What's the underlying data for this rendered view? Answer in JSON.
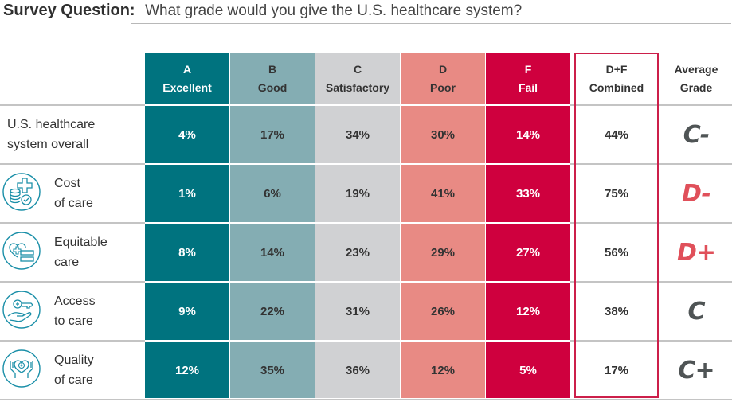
{
  "header": {
    "question_label": "Survey Question:",
    "question_text": "What grade would you give the U.S. healthcare system?"
  },
  "columns": [
    {
      "key": "A",
      "letter": "A",
      "label": "Excellent",
      "color": "#00737f",
      "text_color": "#ffffff"
    },
    {
      "key": "B",
      "letter": "B",
      "label": "Good",
      "color": "#84adb3",
      "text_color": "#333333"
    },
    {
      "key": "C",
      "letter": "C",
      "label": "Satisfactory",
      "color": "#d0d1d3",
      "text_color": "#333333"
    },
    {
      "key": "D",
      "letter": "D",
      "label": "Poor",
      "color": "#e88a84",
      "text_color": "#333333"
    },
    {
      "key": "F",
      "letter": "F",
      "label": "Fail",
      "color": "#cf003e",
      "text_color": "#ffffff"
    }
  ],
  "combined_header": {
    "line1": "D+F",
    "line2": "Combined",
    "border_color": "#cc1f4a"
  },
  "average_header": {
    "line1": "Average",
    "line2": "Grade"
  },
  "grade_colors": {
    "C": "#4f5455",
    "D": "#e0505a"
  },
  "chart_data": {
    "type": "table",
    "title": "What grade would you give the U.S. healthcare system?",
    "columns": [
      "A Excellent",
      "B Good",
      "C Satisfactory",
      "D Poor",
      "F Fail",
      "D+F Combined",
      "Average Grade"
    ],
    "rows": [
      {
        "label": "U.S. healthcare system overall",
        "label_lines": [
          "U.S. healthcare",
          "system overall"
        ],
        "icon": null,
        "values": [
          "4%",
          "17%",
          "34%",
          "30%",
          "14%"
        ],
        "combined": "44%",
        "grade": "C-",
        "grade_family": "C"
      },
      {
        "label": "Cost of care",
        "label_lines": [
          "Cost",
          "of care"
        ],
        "icon": "coins-medical-cross-icon",
        "values": [
          "1%",
          "6%",
          "19%",
          "41%",
          "33%"
        ],
        "combined": "75%",
        "grade": "D-",
        "grade_family": "D"
      },
      {
        "label": "Equitable care",
        "label_lines": [
          "Equitable",
          "care"
        ],
        "icon": "heart-equals-icon",
        "values": [
          "8%",
          "14%",
          "23%",
          "29%",
          "27%"
        ],
        "combined": "56%",
        "grade": "D+",
        "grade_family": "D"
      },
      {
        "label": "Access to care",
        "label_lines": [
          "Access",
          "to care"
        ],
        "icon": "hand-key-icon",
        "values": [
          "9%",
          "22%",
          "31%",
          "26%",
          "12%"
        ],
        "combined": "38%",
        "grade": "C",
        "grade_family": "C"
      },
      {
        "label": "Quality of care",
        "label_lines": [
          "Quality",
          "of care"
        ],
        "icon": "hands-heart-icon",
        "values": [
          "12%",
          "35%",
          "36%",
          "12%",
          "5%"
        ],
        "combined": "17%",
        "grade": "C+",
        "grade_family": "C"
      }
    ]
  }
}
